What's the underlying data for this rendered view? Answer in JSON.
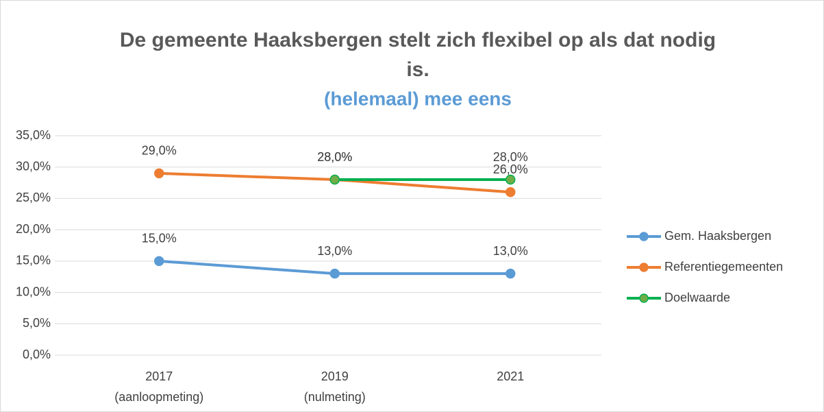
{
  "chart_data": {
    "type": "line",
    "title": [
      "De gemeente Haaksbergen stelt zich flexibel op als dat nodig",
      "is."
    ],
    "subtitle": "(helemaal) mee eens",
    "categories": [
      [
        "2017",
        "(aanloopmeting)"
      ],
      [
        "2019",
        "(nulmeting)"
      ],
      [
        "2021"
      ]
    ],
    "series": [
      {
        "name": "Gem. Haaksbergen",
        "color": "#5b9bd5",
        "marker_color": "#5b9bd5",
        "values": [
          15,
          13,
          13
        ],
        "value_labels": [
          "15,0%",
          "13,0%",
          "13,0%"
        ]
      },
      {
        "name": "Referentiegemeenten",
        "color": "#ed7d31",
        "marker_color": "#ed7d31",
        "values": [
          29,
          28,
          26
        ],
        "value_labels": [
          "29,0%",
          "28,0%",
          "26,0%"
        ]
      },
      {
        "name": "Doelwaarde",
        "color": "#00b050",
        "marker_color": "#70ad47",
        "values": [
          null,
          28,
          28
        ],
        "value_labels": [
          null,
          "28,0%",
          "28,0%"
        ]
      }
    ],
    "ylim": [
      0,
      35
    ],
    "yticks": [
      {
        "value": 0,
        "label": "0,0%"
      },
      {
        "value": 5,
        "label": "5,0%"
      },
      {
        "value": 10,
        "label": "10,0%"
      },
      {
        "value": 15,
        "label": "15,0%"
      },
      {
        "value": 20,
        "label": "20,0%"
      },
      {
        "value": 25,
        "label": "25,0%"
      },
      {
        "value": 30,
        "label": "30,0%"
      },
      {
        "value": 35,
        "label": "35,0%"
      }
    ],
    "grid": true,
    "legend": "right"
  }
}
